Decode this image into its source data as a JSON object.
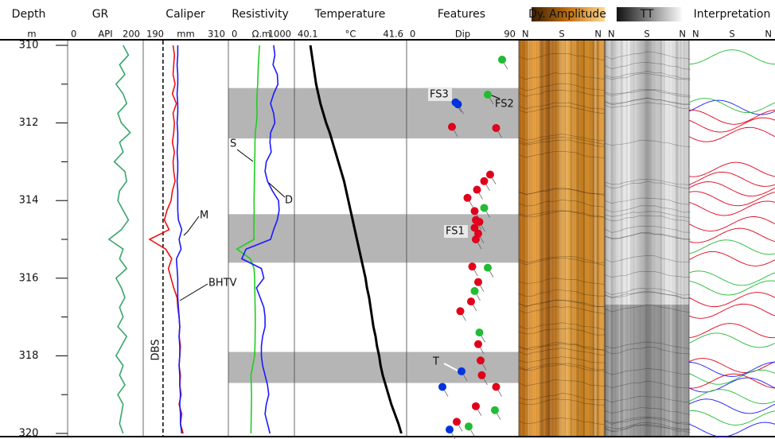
{
  "tracks": [
    {
      "title": "Depth",
      "unit": "m"
    },
    {
      "title": "GR",
      "unit": "API",
      "xlim": [
        0,
        200
      ]
    },
    {
      "title": "Caliper",
      "unit": "mm",
      "xlim": [
        190,
        310
      ]
    },
    {
      "title": "Resistivity",
      "unit": "Ω.m",
      "xlim": [
        0,
        1000
      ]
    },
    {
      "title": "Temperature",
      "unit": "°C",
      "xlim": [
        40.1,
        41.6
      ]
    },
    {
      "title": "Features",
      "unit": "Dip",
      "xlim": [
        0,
        90
      ]
    },
    {
      "title": "Dy. Amplitude",
      "orientation": [
        "N",
        "S",
        "N"
      ]
    },
    {
      "title": "TT",
      "orientation": [
        "N",
        "S",
        "N"
      ]
    },
    {
      "title": "Interpretation",
      "orientation": [
        "N",
        "S",
        "N"
      ]
    }
  ],
  "depth_axis": {
    "ylim": [
      310,
      320
    ],
    "yticks": [
      310,
      312,
      314,
      316,
      318,
      320
    ],
    "minor_ticks": [
      311,
      313,
      315,
      317,
      319
    ]
  },
  "depths": [
    310,
    310.25,
    310.5,
    310.75,
    311,
    311.25,
    311.5,
    311.75,
    312,
    312.25,
    312.5,
    312.75,
    313,
    313.25,
    313.5,
    313.75,
    314,
    314.25,
    314.5,
    314.75,
    315,
    315.25,
    315.5,
    315.75,
    316,
    316.25,
    316.5,
    316.75,
    317,
    317.25,
    317.5,
    317.75,
    318,
    318.25,
    318.5,
    318.75,
    319,
    319.25,
    319.5,
    319.75,
    320
  ],
  "curves": [
    {
      "track": 1,
      "color": "#3aa66b",
      "values": [
        150,
        165,
        140,
        155,
        130,
        150,
        160,
        135,
        145,
        170,
        140,
        150,
        125,
        155,
        160,
        140,
        135,
        150,
        165,
        145,
        110,
        150,
        140,
        160,
        130,
        145,
        155,
        140,
        150,
        135,
        160,
        145,
        130,
        150,
        140,
        155,
        135,
        150,
        145,
        140,
        150
      ]
    },
    {
      "track": 2,
      "label": "BHTV",
      "color": "#ee1111",
      "values": [
        231,
        233,
        232,
        231,
        234,
        230,
        236,
        231,
        233,
        232,
        230,
        233,
        231,
        232,
        234,
        230,
        228,
        222,
        218,
        225,
        196,
        220,
        229,
        224,
        228,
        232,
        237,
        238,
        240,
        241,
        240,
        242,
        241,
        240,
        242,
        241,
        243,
        240,
        244,
        242,
        246
      ]
    },
    {
      "track": 2,
      "label": "M",
      "color": "#1a1aff",
      "values": [
        238,
        238,
        237,
        238,
        238,
        237,
        238,
        238,
        237,
        238,
        238,
        237,
        238,
        238,
        237,
        238,
        238,
        238,
        239,
        244,
        240,
        243,
        236,
        237,
        238,
        238,
        238,
        239,
        240,
        241,
        240,
        241,
        241,
        240,
        241,
        241,
        242,
        241,
        242,
        242,
        244
      ]
    },
    {
      "track": 3,
      "label": "S",
      "color": "#22cc22",
      "values": [
        470,
        460,
        450,
        445,
        440,
        430,
        425,
        430,
        420,
        400,
        395,
        395,
        390,
        388,
        385,
        383,
        380,
        382,
        380,
        378,
        380,
        100,
        320,
        380,
        390,
        392,
        395,
        398,
        400,
        400,
        398,
        395,
        390,
        360,
        330,
        335,
        340,
        338,
        335,
        332,
        330
      ]
    },
    {
      "track": 3,
      "label": "D",
      "color": "#1a1aff",
      "values": [
        700,
        720,
        690,
        760,
        770,
        700,
        650,
        700,
        720,
        650,
        640,
        660,
        580,
        560,
        600,
        680,
        780,
        790,
        760,
        700,
        650,
        250,
        180,
        500,
        540,
        420,
        480,
        540,
        560,
        560,
        520,
        500,
        500,
        520,
        560,
        600,
        620,
        580,
        560,
        600,
        640
      ]
    },
    {
      "track": 4,
      "color": "#000000",
      "values": [
        40.29,
        40.31,
        40.33,
        40.35,
        40.37,
        40.4,
        40.43,
        40.47,
        40.51,
        40.56,
        40.6,
        40.64,
        40.68,
        40.72,
        40.76,
        40.79,
        40.82,
        40.85,
        40.88,
        40.91,
        40.94,
        40.97,
        41.0,
        41.03,
        41.06,
        41.08,
        41.11,
        41.13,
        41.15,
        41.17,
        41.2,
        41.22,
        41.25,
        41.27,
        41.3,
        41.34,
        41.38,
        41.42,
        41.47,
        41.52,
        41.56
      ]
    }
  ],
  "dbs": {
    "label": "DBS",
    "value": 216
  },
  "bands": [
    [
      311.1,
      312.4
    ],
    [
      314.35,
      315.6
    ],
    [
      317.9,
      318.7
    ]
  ],
  "features": [
    {
      "depth": 310.37,
      "dip": 78,
      "color": "#22bb33"
    },
    {
      "depth": 311.27,
      "dip": 66,
      "color": "#22bb33"
    },
    {
      "depth": 311.47,
      "dip": 39,
      "color": "#0033dd"
    },
    {
      "depth": 311.52,
      "dip": 41,
      "color": "#0033dd"
    },
    {
      "depth": 312.1,
      "dip": 36,
      "color": "#e0001b"
    },
    {
      "depth": 312.13,
      "dip": 73,
      "color": "#e0001b"
    },
    {
      "depth": 313.33,
      "dip": 68,
      "color": "#e0001b"
    },
    {
      "depth": 313.5,
      "dip": 63,
      "color": "#e0001b"
    },
    {
      "depth": 313.72,
      "dip": 57,
      "color": "#e0001b"
    },
    {
      "depth": 313.93,
      "dip": 49,
      "color": "#e0001b"
    },
    {
      "depth": 314.19,
      "dip": 63,
      "color": "#22bb33"
    },
    {
      "depth": 314.27,
      "dip": 55,
      "color": "#e0001b"
    },
    {
      "depth": 314.5,
      "dip": 56,
      "color": "#e0001b"
    },
    {
      "depth": 314.55,
      "dip": 59,
      "color": "#e0001b"
    },
    {
      "depth": 314.7,
      "dip": 55,
      "color": "#e0001b"
    },
    {
      "depth": 314.85,
      "dip": 58,
      "color": "#e0001b"
    },
    {
      "depth": 315.0,
      "dip": 56,
      "color": "#e0001b"
    },
    {
      "depth": 315.7,
      "dip": 53,
      "color": "#e0001b"
    },
    {
      "depth": 315.73,
      "dip": 66,
      "color": "#22bb33"
    },
    {
      "depth": 316.1,
      "dip": 58,
      "color": "#e0001b"
    },
    {
      "depth": 316.33,
      "dip": 55,
      "color": "#22bb33"
    },
    {
      "depth": 316.6,
      "dip": 52,
      "color": "#e0001b"
    },
    {
      "depth": 316.85,
      "dip": 43,
      "color": "#e0001b"
    },
    {
      "depth": 317.4,
      "dip": 59,
      "color": "#22bb33"
    },
    {
      "depth": 317.7,
      "dip": 58,
      "color": "#e0001b"
    },
    {
      "depth": 318.12,
      "dip": 60,
      "color": "#e0001b"
    },
    {
      "depth": 318.4,
      "dip": 44,
      "color": "#0033dd"
    },
    {
      "depth": 318.5,
      "dip": 61,
      "color": "#e0001b"
    },
    {
      "depth": 318.8,
      "dip": 28,
      "color": "#0033dd"
    },
    {
      "depth": 318.8,
      "dip": 73,
      "color": "#e0001b"
    },
    {
      "depth": 319.3,
      "dip": 56,
      "color": "#e0001b"
    },
    {
      "depth": 319.4,
      "dip": 72,
      "color": "#22bb33"
    },
    {
      "depth": 319.7,
      "dip": 40,
      "color": "#e0001b"
    },
    {
      "depth": 319.82,
      "dip": 50,
      "color": "#22bb33"
    },
    {
      "depth": 319.9,
      "dip": 34,
      "color": "#0033dd"
    }
  ],
  "feature_labels": [
    "FS3",
    "FS2",
    "FS1",
    "T"
  ],
  "interpretation": [
    {
      "depth": 310.3,
      "color": "#22bb33"
    },
    {
      "depth": 311.6,
      "color": "#1a1aff"
    },
    {
      "depth": 311.55,
      "color": "#22bb33"
    },
    {
      "depth": 311.85,
      "color": "#e0001b"
    },
    {
      "depth": 312.05,
      "color": "#e0001b"
    },
    {
      "depth": 312.3,
      "color": "#e0001b"
    },
    {
      "depth": 313.2,
      "color": "#e0001b"
    },
    {
      "depth": 313.45,
      "color": "#e0001b"
    },
    {
      "depth": 313.7,
      "color": "#e0001b"
    },
    {
      "depth": 313.95,
      "color": "#e0001b"
    },
    {
      "depth": 314.2,
      "color": "#e0001b"
    },
    {
      "depth": 314.6,
      "color": "#e0001b"
    },
    {
      "depth": 314.9,
      "color": "#e0001b"
    },
    {
      "depth": 315.2,
      "color": "#22bb33"
    },
    {
      "depth": 315.5,
      "color": "#e0001b"
    },
    {
      "depth": 316.0,
      "color": "#22bb33"
    },
    {
      "depth": 316.25,
      "color": "#22bb33"
    },
    {
      "depth": 316.55,
      "color": "#e0001b"
    },
    {
      "depth": 316.85,
      "color": "#e0001b"
    },
    {
      "depth": 317.35,
      "color": "#e0001b"
    },
    {
      "depth": 317.6,
      "color": "#22bb33"
    },
    {
      "depth": 318.25,
      "color": "#e0001b"
    },
    {
      "depth": 318.35,
      "color": "#1a1aff"
    },
    {
      "depth": 318.55,
      "color": "#22bb33"
    },
    {
      "depth": 318.75,
      "color": "#1a1aff"
    },
    {
      "depth": 318.65,
      "color": "#e0001b"
    },
    {
      "depth": 319.05,
      "color": "#22bb33"
    },
    {
      "depth": 319.3,
      "color": "#1a1aff"
    },
    {
      "depth": 319.6,
      "color": "#22bb33"
    },
    {
      "depth": 319.9,
      "color": "#1a1aff"
    }
  ]
}
